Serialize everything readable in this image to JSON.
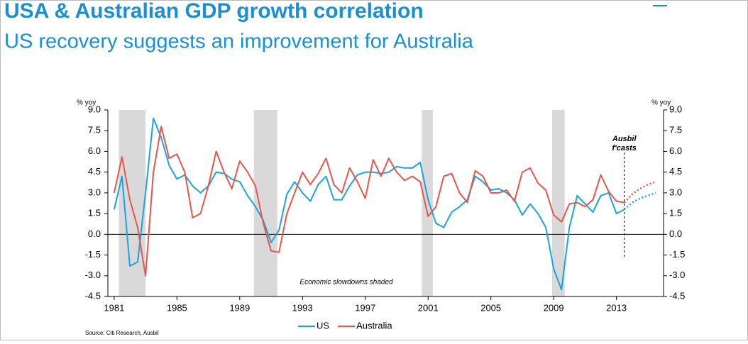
{
  "chart_data": {
    "type": "line",
    "title": "USA & Australian GDP growth correlation",
    "subtitle": "US recovery suggests an improvement for Australia",
    "ylabel": "% yoy",
    "y2label": "% yoy",
    "source": "Source: Citi Research, Ausbil",
    "annotation": "Economic slowdowns shaded",
    "forecast_label": [
      "Ausbil",
      "f'casts"
    ],
    "forecast_start": 2013.5,
    "shaded_periods": [
      [
        1981.3,
        1983.0
      ],
      [
        1989.9,
        1991.4
      ],
      [
        2000.6,
        2001.3
      ],
      [
        2008.9,
        2009.7
      ]
    ],
    "shade_color": "#d9d9d9",
    "legend": "bottom",
    "xlim": [
      1980.6,
      2016
    ],
    "xticks": [
      1981,
      1985,
      1989,
      1993,
      1997,
      2001,
      2005,
      2009,
      2013
    ],
    "ylim": [
      -4.5,
      9
    ],
    "y2lim": [
      -4.5,
      9
    ],
    "yticks": [
      {
        "value": 9,
        "label": "9.0"
      },
      {
        "value": 7.5,
        "label": "7.5"
      },
      {
        "value": 6,
        "label": "6.0"
      },
      {
        "value": 4.5,
        "label": "4.5"
      },
      {
        "value": 3,
        "label": "3.0"
      },
      {
        "value": 1.5,
        "label": "1.5"
      },
      {
        "value": 0,
        "label": "0.0"
      },
      {
        "value": -1.5,
        "label": "-1.5"
      },
      {
        "value": -3,
        "label": "-3.0"
      },
      {
        "value": -4.5,
        "label": "-4.5"
      }
    ],
    "y2ticks": [
      {
        "value": 9,
        "label": "9.0"
      },
      {
        "value": 7.5,
        "label": "7.5"
      },
      {
        "value": 6,
        "label": "6.0"
      },
      {
        "value": 4.5,
        "label": "4.5"
      },
      {
        "value": 3,
        "label": "3.0"
      },
      {
        "value": 1.5,
        "label": "1.5"
      },
      {
        "value": 0,
        "label": "0.0"
      },
      {
        "value": -1.5,
        "label": "-1.5"
      },
      {
        "value": -3,
        "label": "-3.0"
      },
      {
        "value": -4.5,
        "label": "-4.5"
      }
    ],
    "x": [
      1981,
      1981.5,
      1982,
      1982.5,
      1983,
      1983.5,
      1984,
      1984.5,
      1985,
      1985.5,
      1986,
      1986.5,
      1987,
      1987.5,
      1988,
      1988.5,
      1989,
      1989.5,
      1990,
      1990.5,
      1991,
      1991.5,
      1992,
      1992.5,
      1993,
      1993.5,
      1994,
      1994.5,
      1995,
      1995.5,
      1996,
      1996.5,
      1997,
      1997.5,
      1998,
      1998.5,
      1999,
      1999.5,
      2000,
      2000.5,
      2001,
      2001.5,
      2002,
      2002.5,
      2003,
      2003.5,
      2004,
      2004.5,
      2005,
      2005.5,
      2006,
      2006.5,
      2007,
      2007.5,
      2008,
      2008.5,
      2009,
      2009.5,
      2010,
      2010.5,
      2011,
      2011.5,
      2012,
      2012.5,
      2013,
      2013.5,
      2014,
      2014.5,
      2015,
      2015.5
    ],
    "series": [
      {
        "name": "US",
        "color": "#1ba3de",
        "values": [
          1.8,
          4.2,
          -2.3,
          -2.0,
          3.0,
          8.4,
          7.0,
          5.0,
          4.0,
          4.3,
          3.5,
          3.0,
          3.5,
          4.5,
          4.4,
          4.0,
          3.8,
          2.8,
          2.0,
          1.0,
          -0.6,
          0.3,
          2.9,
          3.8,
          3.0,
          2.4,
          3.6,
          4.2,
          2.5,
          2.5,
          3.5,
          4.3,
          4.5,
          4.5,
          4.4,
          4.5,
          4.9,
          4.8,
          4.8,
          5.2,
          2.5,
          0.8,
          0.5,
          1.6,
          2.0,
          2.5,
          4.2,
          3.8,
          3.2,
          3.3,
          3.0,
          2.5,
          1.4,
          2.2,
          1.5,
          0.5,
          -2.5,
          -4.0,
          0.5,
          2.8,
          2.2,
          1.6,
          2.8,
          3.0,
          1.5,
          1.8,
          2.3,
          2.6,
          2.8,
          3.0
        ]
      },
      {
        "name": "Australia",
        "color": "#e6564a",
        "values": [
          3.0,
          5.6,
          2.5,
          0.5,
          -3.0,
          4.5,
          7.8,
          5.5,
          5.8,
          4.5,
          1.2,
          1.5,
          3.5,
          6.0,
          4.5,
          3.3,
          5.3,
          4.5,
          3.5,
          0.8,
          -1.2,
          -1.3,
          1.5,
          3.0,
          4.5,
          3.6,
          4.4,
          5.5,
          3.6,
          3.0,
          4.8,
          3.8,
          2.6,
          5.4,
          4.2,
          5.5,
          4.5,
          3.9,
          4.2,
          3.8,
          1.3,
          2.0,
          4.2,
          4.4,
          3.0,
          2.3,
          4.6,
          4.2,
          3.0,
          3.0,
          3.2,
          2.4,
          4.5,
          4.8,
          3.7,
          3.2,
          1.4,
          0.9,
          2.2,
          2.3,
          2.0,
          2.5,
          4.3,
          3.1,
          2.4,
          2.3,
          2.9,
          3.3,
          3.6,
          3.8
        ]
      }
    ]
  }
}
